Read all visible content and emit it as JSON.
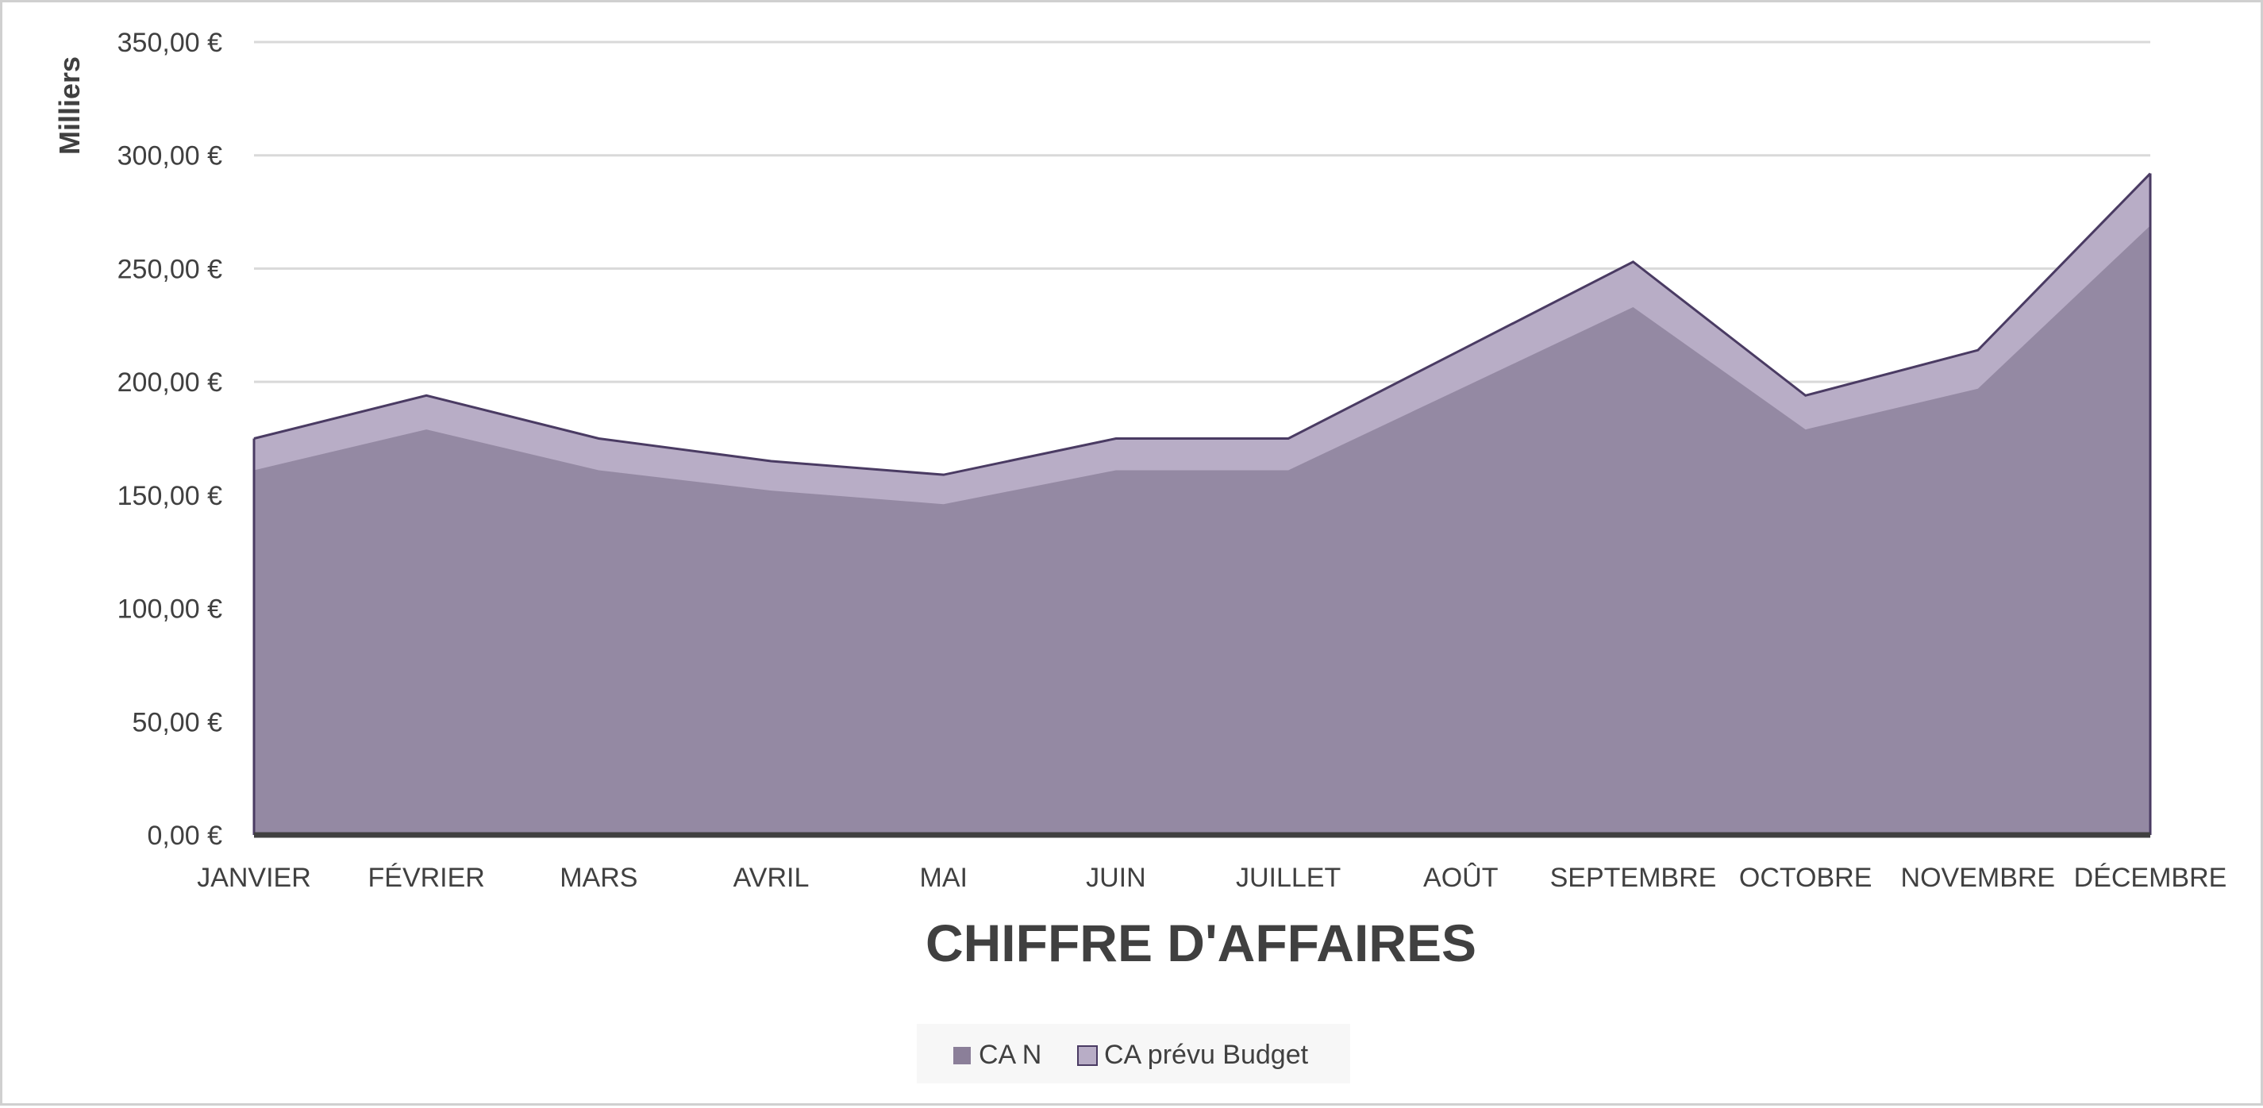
{
  "chart_data": {
    "type": "area",
    "title": "CHIFFRE D'AFFAIRES",
    "ylabel": "Milliers",
    "ylim": [
      0,
      350
    ],
    "y_ticks": [
      0,
      50,
      100,
      150,
      200,
      250,
      300,
      350
    ],
    "y_tick_labels": [
      "0,00 €",
      "50,00 €",
      "100,00 €",
      "150,00 €",
      "200,00 €",
      "250,00 €",
      "300,00 €",
      "350,00 €"
    ],
    "categories": [
      "JANVIER",
      "FÉVRIER",
      "MARS",
      "AVRIL",
      "MAI",
      "JUIN",
      "JUILLET",
      "AOÛT",
      "SEPTEMBRE",
      "OCTOBRE",
      "NOVEMBRE",
      "DÉCEMBRE"
    ],
    "series": [
      {
        "name": "CA N",
        "values": [
          161,
          179,
          161,
          152,
          146,
          161,
          161,
          197,
          233,
          179,
          197,
          269
        ],
        "color": "#8b7f99"
      },
      {
        "name": "CA prévu Budget",
        "values": [
          175,
          194,
          175,
          165,
          159,
          175,
          175,
          214,
          253,
          194,
          214,
          292
        ],
        "color": "#b8adc6",
        "line_color": "#4a3b63"
      }
    ],
    "grid": true,
    "legend_position": "bottom"
  }
}
